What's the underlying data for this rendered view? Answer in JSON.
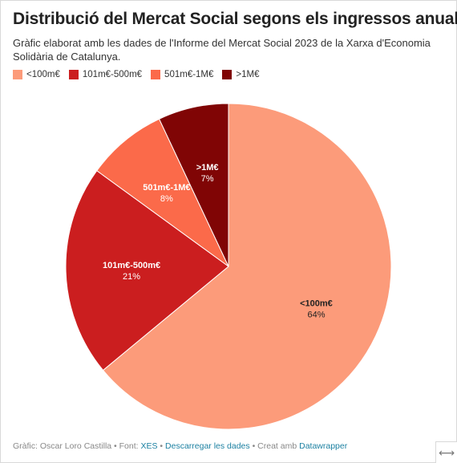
{
  "chart_data": {
    "type": "pie",
    "title": "Distribució del Mercat Social segons els ingressos anuals",
    "subtitle": "Gràfic elaborat amb les dades de l'Informe del Mercat Social 2023 de la Xarxa d'Economia Solidària de Catalunya.",
    "legend_position": "top-left",
    "slices": [
      {
        "label": "<100m€",
        "value": 64,
        "value_label": "64%",
        "color": "#fc9b7a",
        "text_color": "#222222"
      },
      {
        "label": "101m€-500m€",
        "value": 21,
        "value_label": "21%",
        "color": "#cb1e1f",
        "text_color": "#ffffff"
      },
      {
        "label": "501m€-1M€",
        "value": 8,
        "value_label": "8%",
        "color": "#fb6a4a",
        "text_color": "#ffffff"
      },
      {
        "label": ">1M€",
        "value": 7,
        "value_label": "7%",
        "color": "#800505",
        "text_color": "#ffffff"
      }
    ]
  },
  "footer": {
    "credit": "Gràfic: Oscar Loro Castilla",
    "sep1": " • Font: ",
    "source_link": "XES",
    "sep2": " • ",
    "download_link": "Descarregar les dades",
    "sep3": " • Creat amb ",
    "tool_link": "Datawrapper"
  },
  "expand_icon": "⟷"
}
